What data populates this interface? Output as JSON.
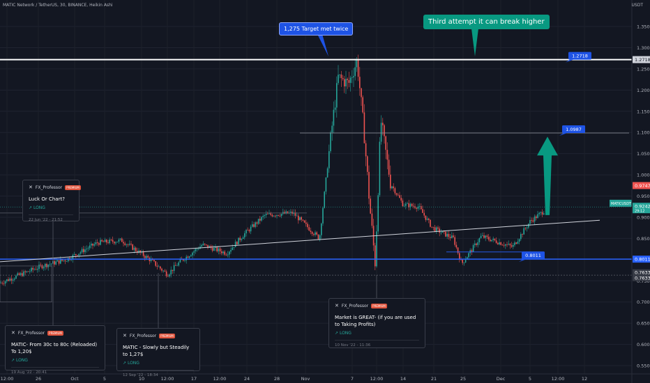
{
  "header": {
    "title": "MATIC Network / TetherUS, 30, BINANCE, Heikin Ashi",
    "currency": "USDT"
  },
  "colors": {
    "background": "#131722",
    "up": "#26a69a",
    "down": "#ef5350",
    "support_line": "#2962ff",
    "target_line": "#ffffff",
    "current_price": "#26a69a",
    "callout_blue": "#1e53e5",
    "callout_green": "#089981",
    "arrow_green": "#089981"
  },
  "chart_data": {
    "type": "candlestick",
    "title": "",
    "xlabel": "",
    "ylabel": "",
    "ylim": [
      0.54,
      1.39
    ],
    "x_ticks": [
      "12:00",
      "26",
      "Oct",
      "5",
      "10",
      "12:00",
      "17",
      "12:00",
      "24",
      "28",
      "Nov",
      "7",
      "12:00",
      "14",
      "21",
      "25",
      "Dec",
      "5",
      "12:00",
      "12"
    ],
    "y_ticks": [
      "1.3500",
      "1.3000",
      "1.2500",
      "1.2000",
      "1.1500",
      "1.1000",
      "1.0500",
      "1.0000",
      "0.9500",
      "0.9000",
      "0.8500",
      "0.8000",
      "0.7500",
      "0.7000",
      "0.6500",
      "0.6000",
      "0.5500"
    ],
    "price_path": [
      [
        0,
        0.745
      ],
      [
        60,
        0.785
      ],
      [
        95,
        0.8
      ],
      [
        140,
        0.84
      ],
      [
        175,
        0.845
      ],
      [
        215,
        0.8
      ],
      [
        240,
        0.765
      ],
      [
        258,
        0.795
      ],
      [
        290,
        0.835
      ],
      [
        325,
        0.815
      ],
      [
        350,
        0.86
      ],
      [
        380,
        0.905
      ],
      [
        420,
        0.91
      ],
      [
        458,
        0.85
      ],
      [
        475,
        1.1
      ],
      [
        485,
        1.23
      ],
      [
        500,
        1.215
      ],
      [
        512,
        1.27
      ],
      [
        522,
        1.1
      ],
      [
        530,
        0.93
      ],
      [
        538,
        0.79
      ],
      [
        546,
        1.13
      ],
      [
        560,
        0.98
      ],
      [
        578,
        0.93
      ],
      [
        600,
        0.925
      ],
      [
        620,
        0.875
      ],
      [
        650,
        0.85
      ],
      [
        662,
        0.79
      ],
      [
        690,
        0.855
      ],
      [
        735,
        0.83
      ],
      [
        760,
        0.89
      ],
      [
        780,
        0.915
      ]
    ],
    "levels": [
      {
        "name": "target_high",
        "value": 1.2718,
        "label": "1.2718"
      },
      {
        "name": "target_mid",
        "value": 1.0987,
        "label": "1.0987"
      },
      {
        "name": "support",
        "value": 0.8011,
        "label": "0.8011"
      }
    ],
    "price_labels": [
      {
        "value": 0.9747,
        "label": "0.9747",
        "color": "#ef5350"
      },
      {
        "value": 0.9242,
        "label": "0.9242",
        "color": "#26a69a"
      },
      {
        "value": 0.7633,
        "label": "0.7633",
        "color": "#363a45"
      },
      {
        "value": 0.7633,
        "label": "0.7633",
        "color": "#363a45"
      }
    ],
    "current": {
      "value": 0.9242,
      "symbol": "MATICUSDT",
      "countdown": "29:12"
    },
    "trendline": {
      "start": [
        0,
        0.795
      ],
      "end": [
        860,
        0.893
      ]
    },
    "pills": [
      {
        "text": "1.2718",
        "x": 815,
        "value": 1.2718
      },
      {
        "text": "1.0987",
        "x": 806,
        "value": 1.0987
      },
      {
        "text": "0.8011",
        "x": 748,
        "value": 0.8011
      }
    ],
    "arrow": {
      "x": 785,
      "from": 0.905,
      "to": 1.09
    }
  },
  "callouts": {
    "target_met": "1,275 Target met twice",
    "third_attempt": "Third attempt it can break higher"
  },
  "ideas": [
    {
      "author": "FX_Professor",
      "badge": "PREMIUM",
      "title": "Luck Or  Chart?",
      "direction": "LONG",
      "date": "22 Jun '22 - 21:52"
    },
    {
      "author": "FX_Professor",
      "badge": "PREMIUM",
      "title": "MATIC- From 30c to 80c (Reloaded) To 1,20$",
      "direction": "LONG",
      "date": "19 Aug '22 - 20:41"
    },
    {
      "author": "FX_Professor",
      "badge": "PREMIUM",
      "title": "MATIC - Slowly but Steadily to 1,27$",
      "direction": "LONG",
      "date": "12 Sep '22 - 18:34"
    },
    {
      "author": "FX_Professor",
      "badge": "PREMIUM",
      "title": "Market is GREAT- (if you are used to Taking Profits)",
      "direction": "LONG",
      "date": "10 Nov '22 - 11:36"
    }
  ]
}
